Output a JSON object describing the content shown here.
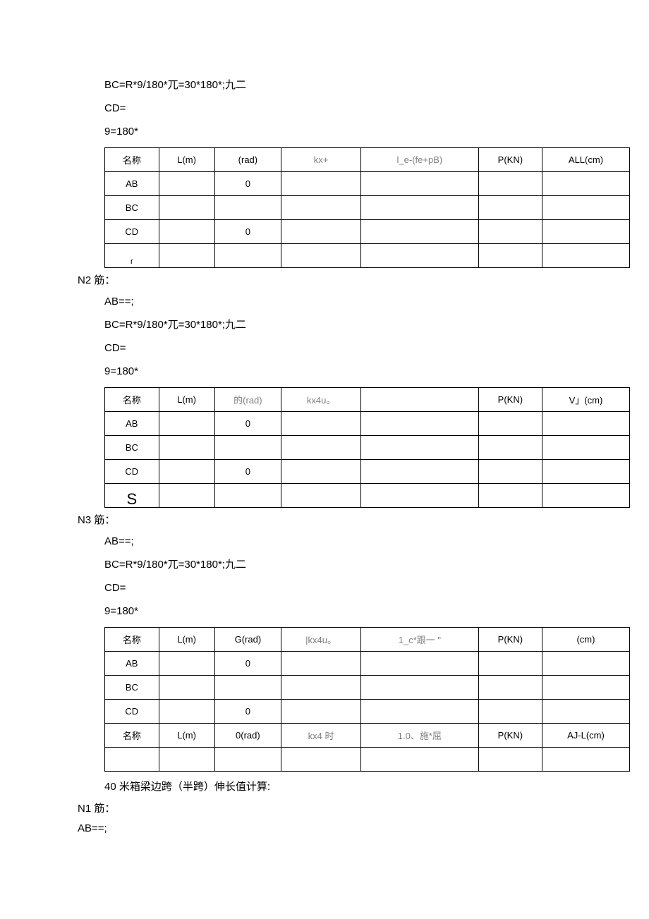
{
  "section1": {
    "formulas": [
      "BC=R*9/180*兀=30*180*;九二",
      "CD=",
      "9=180*"
    ],
    "headers": [
      "名称",
      "L(m)",
      "(rad)",
      "kx+",
      "l_e-(fe+pB)",
      "P(KN)",
      "ALL(cm)"
    ],
    "rows": [
      [
        "AB",
        "",
        "0",
        "",
        "",
        "",
        ""
      ],
      [
        "BC",
        "",
        "",
        "",
        "",
        "",
        ""
      ],
      [
        "CD",
        "",
        "0",
        "",
        "",
        "",
        ""
      ],
      [
        "r",
        "",
        "",
        "",
        "",
        "",
        ""
      ]
    ]
  },
  "section2": {
    "label": "N2 筋：",
    "formulas": [
      "AB==;",
      "BC=R*9/180*兀=30*180*;九二",
      "CD=",
      "9=180*"
    ],
    "headers": [
      "名称",
      "L(m)",
      "的(rad)",
      "kx4u。",
      "",
      "P(KN)",
      "V」(cm)"
    ],
    "rows": [
      [
        "AB",
        "",
        "0",
        "",
        "",
        "",
        ""
      ],
      [
        "BC",
        "",
        "",
        "",
        "",
        "",
        ""
      ],
      [
        "CD",
        "",
        "0",
        "",
        "",
        "",
        ""
      ],
      [
        "S",
        "",
        "",
        "",
        "",
        "",
        ""
      ]
    ]
  },
  "section3": {
    "label": "N3 筋：",
    "formulas": [
      "AB==;",
      "BC=R*9/180*兀=30*180*;九二",
      "CD=",
      "9=180*"
    ],
    "headers": [
      "名称",
      "L(m)",
      "G(rad)",
      "|kx4u。",
      "1_c*跟一 \"",
      "P(KN)",
      "(cm)"
    ],
    "rows": [
      [
        "AB",
        "",
        "0",
        "",
        "",
        "",
        ""
      ],
      [
        "BC",
        "",
        "",
        "",
        "",
        "",
        ""
      ],
      [
        "CD",
        "",
        "0",
        "",
        "",
        "",
        ""
      ]
    ],
    "headers2": [
      "名称",
      "L(m)",
      "0(rad)",
      "kx4 时",
      "1.0、施*屈",
      "P(KN)",
      "AJ-L(cm)"
    ],
    "rows2": [
      [
        "",
        "",
        "",
        "",
        "",
        "",
        ""
      ]
    ]
  },
  "footer": {
    "line1": "40 米箱梁边跨（半跨）伸长值计算:",
    "line2": "N1 筋：",
    "line3": "AB==;"
  },
  "gray_columns": [
    3,
    4
  ]
}
